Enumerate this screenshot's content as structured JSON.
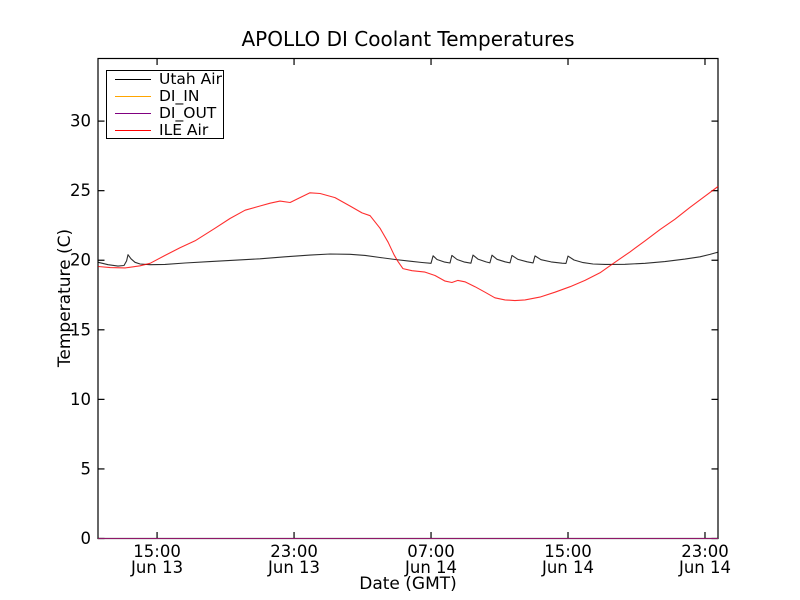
{
  "chart_data": {
    "type": "line",
    "title": "APOLLO DI Coolant Temperatures",
    "xlabel": "Date (GMT)",
    "ylabel": "Temperature (C)",
    "x_unit": "hours since Jun 13 00:00 GMT",
    "xlim": [
      11.55,
      47.76
    ],
    "ylim": [
      0,
      34.5
    ],
    "grid": false,
    "legend_position": "upper left",
    "yticks": [
      0,
      5,
      10,
      15,
      20,
      25,
      30
    ],
    "xticks": [
      {
        "x": 15,
        "time": "15:00",
        "date": "Jun 13"
      },
      {
        "x": 23,
        "time": "23:00",
        "date": "Jun 13"
      },
      {
        "x": 31,
        "time": "07:00",
        "date": "Jun 14"
      },
      {
        "x": 39,
        "time": "15:00",
        "date": "Jun 14"
      },
      {
        "x": 47,
        "time": "23:00",
        "date": "Jun 14"
      }
    ],
    "series": [
      {
        "name": "Utah Air",
        "color": "#000000",
        "points": [
          [
            11.56,
            19.85
          ],
          [
            12.14,
            19.68
          ],
          [
            12.72,
            19.58
          ],
          [
            13.07,
            19.62
          ],
          [
            13.22,
            19.95
          ],
          [
            13.3,
            20.4
          ],
          [
            13.48,
            20.1
          ],
          [
            13.71,
            19.85
          ],
          [
            14.01,
            19.73
          ],
          [
            14.59,
            19.68
          ],
          [
            15.47,
            19.7
          ],
          [
            16.63,
            19.8
          ],
          [
            18.09,
            19.9
          ],
          [
            19.55,
            20.0
          ],
          [
            21.01,
            20.1
          ],
          [
            22.47,
            20.25
          ],
          [
            23.93,
            20.37
          ],
          [
            25.1,
            20.45
          ],
          [
            26.27,
            20.43
          ],
          [
            27.15,
            20.35
          ],
          [
            28.02,
            20.2
          ],
          [
            28.9,
            20.05
          ],
          [
            29.77,
            19.93
          ],
          [
            30.47,
            19.84
          ],
          [
            31.0,
            19.78
          ],
          [
            31.12,
            20.32
          ],
          [
            31.35,
            20.05
          ],
          [
            31.76,
            19.88
          ],
          [
            32.11,
            19.8
          ],
          [
            32.22,
            20.35
          ],
          [
            32.52,
            20.05
          ],
          [
            32.92,
            19.88
          ],
          [
            33.33,
            19.79
          ],
          [
            33.45,
            20.37
          ],
          [
            33.74,
            20.08
          ],
          [
            34.21,
            19.88
          ],
          [
            34.44,
            19.81
          ],
          [
            34.56,
            20.36
          ],
          [
            34.85,
            20.07
          ],
          [
            35.32,
            19.89
          ],
          [
            35.61,
            19.81
          ],
          [
            35.73,
            20.35
          ],
          [
            36.08,
            20.06
          ],
          [
            36.61,
            19.89
          ],
          [
            36.96,
            19.81
          ],
          [
            37.07,
            20.31
          ],
          [
            37.42,
            20.04
          ],
          [
            38.01,
            19.88
          ],
          [
            38.65,
            19.79
          ],
          [
            38.88,
            19.77
          ],
          [
            39.0,
            20.3
          ],
          [
            39.35,
            20.02
          ],
          [
            39.88,
            19.83
          ],
          [
            40.46,
            19.73
          ],
          [
            41.16,
            19.7
          ],
          [
            42.33,
            19.71
          ],
          [
            43.5,
            19.78
          ],
          [
            44.66,
            19.9
          ],
          [
            45.83,
            20.08
          ],
          [
            46.71,
            20.25
          ],
          [
            47.29,
            20.42
          ],
          [
            47.58,
            20.52
          ],
          [
            47.76,
            20.58
          ]
        ]
      },
      {
        "name": "DI_IN",
        "color": "#ffa500",
        "points": [
          [
            11.56,
            0.0
          ],
          [
            47.76,
            0.0
          ]
        ]
      },
      {
        "name": "DI_OUT",
        "color": "#800080",
        "points": [
          [
            11.56,
            0.0
          ],
          [
            47.76,
            0.0
          ]
        ]
      },
      {
        "name": "ILE Air",
        "color": "#ff0000",
        "points": [
          [
            11.56,
            19.55
          ],
          [
            12.26,
            19.47
          ],
          [
            13.13,
            19.45
          ],
          [
            14.01,
            19.6
          ],
          [
            14.59,
            19.78
          ],
          [
            15.47,
            20.35
          ],
          [
            16.34,
            20.9
          ],
          [
            17.22,
            21.4
          ],
          [
            18.39,
            22.3
          ],
          [
            19.26,
            23.0
          ],
          [
            20.14,
            23.6
          ],
          [
            21.01,
            23.9
          ],
          [
            21.6,
            24.1
          ],
          [
            22.18,
            24.25
          ],
          [
            22.77,
            24.15
          ],
          [
            23.35,
            24.5
          ],
          [
            23.93,
            24.85
          ],
          [
            24.52,
            24.8
          ],
          [
            25.39,
            24.5
          ],
          [
            26.27,
            23.9
          ],
          [
            26.97,
            23.4
          ],
          [
            27.44,
            23.2
          ],
          [
            28.02,
            22.3
          ],
          [
            28.49,
            21.3
          ],
          [
            28.84,
            20.4
          ],
          [
            29.07,
            19.9
          ],
          [
            29.36,
            19.4
          ],
          [
            29.89,
            19.25
          ],
          [
            30.65,
            19.15
          ],
          [
            31.23,
            18.9
          ],
          [
            31.82,
            18.5
          ],
          [
            32.22,
            18.4
          ],
          [
            32.57,
            18.55
          ],
          [
            32.98,
            18.45
          ],
          [
            33.57,
            18.1
          ],
          [
            34.15,
            17.7
          ],
          [
            34.73,
            17.3
          ],
          [
            35.32,
            17.15
          ],
          [
            35.9,
            17.1
          ],
          [
            36.49,
            17.15
          ],
          [
            37.36,
            17.35
          ],
          [
            38.24,
            17.7
          ],
          [
            39.12,
            18.1
          ],
          [
            39.99,
            18.55
          ],
          [
            40.87,
            19.1
          ],
          [
            41.74,
            19.85
          ],
          [
            42.62,
            20.6
          ],
          [
            43.5,
            21.4
          ],
          [
            44.37,
            22.2
          ],
          [
            45.25,
            22.95
          ],
          [
            46.12,
            23.8
          ],
          [
            47.0,
            24.6
          ],
          [
            47.76,
            25.3
          ]
        ]
      }
    ]
  }
}
